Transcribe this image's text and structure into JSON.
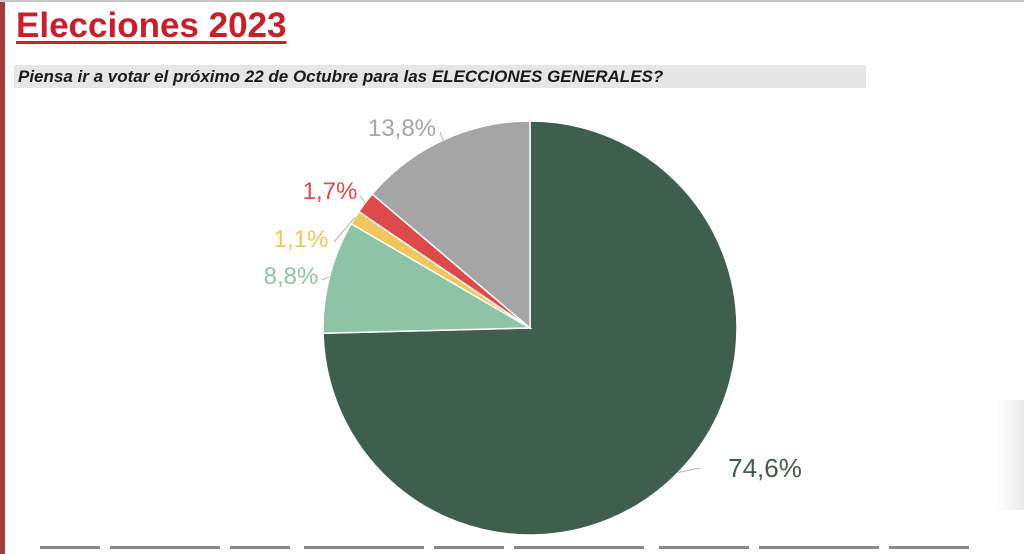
{
  "header": {
    "title": "Elecciones 2023",
    "question": "Piensa ir a votar el próximo 22 de Octubre para las ELECCIONES GENERALES?"
  },
  "chart_data": {
    "type": "pie",
    "start": "12 o'clock",
    "direction": "clockwise",
    "slices": [
      {
        "value": 74.6,
        "label": "74,6%",
        "color": "#3f5e4e",
        "label_color": "#3f5e4e"
      },
      {
        "value": 8.8,
        "label": "8,8%",
        "color": "#8ec4a6",
        "label_color": "#8ec4a6"
      },
      {
        "value": 1.1,
        "label": "1,1%",
        "color": "#f0c75e",
        "label_color": "#f0c75e"
      },
      {
        "value": 1.7,
        "label": "1,7%",
        "color": "#de4a4a",
        "label_color": "#de4a4a"
      },
      {
        "value": 13.8,
        "label": "13,8%",
        "color": "#a5a5a5",
        "label_color": "#a5a5a5"
      }
    ],
    "legend_placement": "bottom"
  }
}
